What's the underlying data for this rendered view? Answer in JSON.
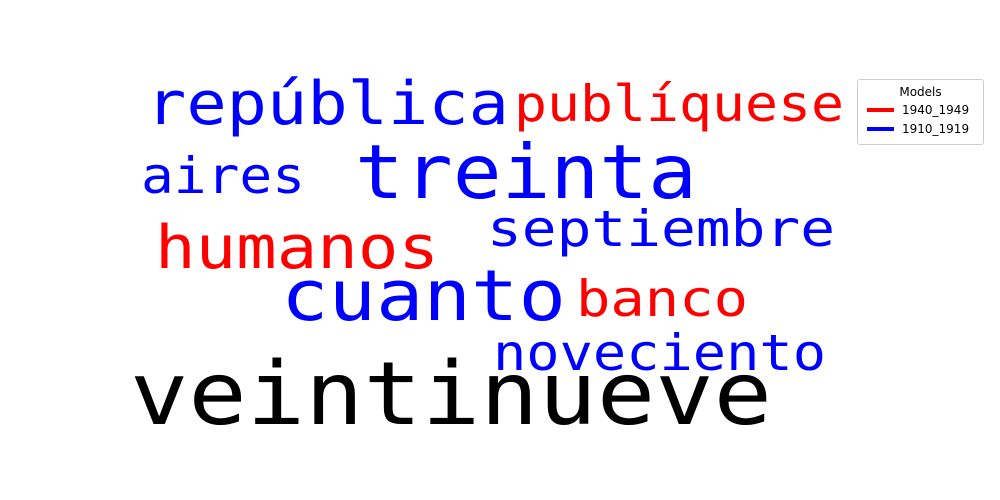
{
  "chart_data": {
    "type": "wordcloud",
    "words": [
      {
        "text": "veintinueve",
        "series": "",
        "color": "#000000"
      },
      {
        "text": "república",
        "series": "1910_1919",
        "color": "#0000ff"
      },
      {
        "text": "publíquese",
        "series": "1940_1949",
        "color": "#ff0000"
      },
      {
        "text": "treinta",
        "series": "1910_1919",
        "color": "#0000ff"
      },
      {
        "text": "aires",
        "series": "1910_1919",
        "color": "#0000ff"
      },
      {
        "text": "humanos",
        "series": "1940_1949",
        "color": "#ff0000"
      },
      {
        "text": "septiembre",
        "series": "1910_1919",
        "color": "#0000ff"
      },
      {
        "text": "cuanto",
        "series": "1910_1919",
        "color": "#0000ff"
      },
      {
        "text": "banco",
        "series": "1940_1949",
        "color": "#ff0000"
      },
      {
        "text": "noveciento",
        "series": "1910_1919",
        "color": "#0000ff"
      }
    ],
    "legend": {
      "title": "Models",
      "position": "top-right",
      "entries": [
        {
          "label": "1940_1949",
          "color": "#ff0000"
        },
        {
          "label": "1910_1919",
          "color": "#0000ff"
        }
      ]
    }
  }
}
